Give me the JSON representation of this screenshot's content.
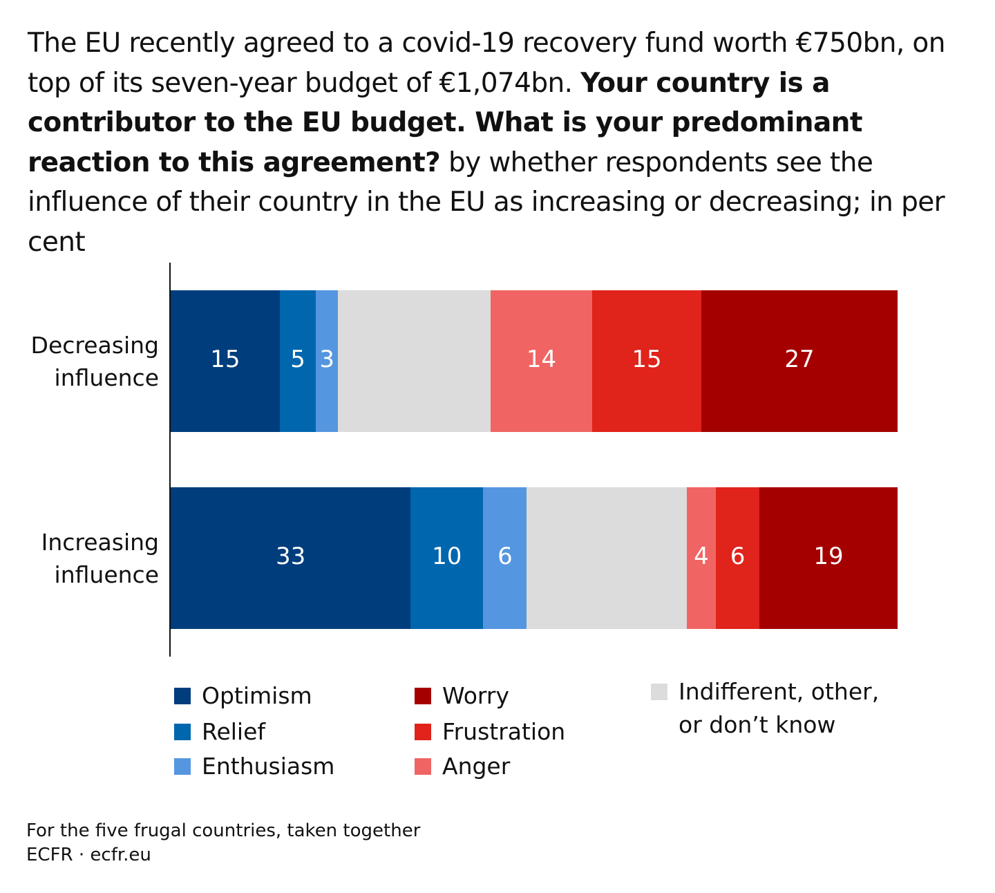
{
  "title_parts": [
    {
      "text": "The EU recently agreed to a covid-19 recovery fund worth €750bn, on top of its seven-year budget of €1,074bn. ",
      "bold": false
    },
    {
      "text": "Your country is a contributor to the EU budget. What is your predominant reaction to this agreement?",
      "bold": true
    },
    {
      "text": " by whether respondents see the influence of their country in the EU as increasing or decreasing; in per cent",
      "bold": false
    }
  ],
  "chart_data": {
    "type": "bar",
    "orientation": "horizontal",
    "stacked": true,
    "xlim": [
      0,
      100
    ],
    "categories": [
      "Decreasing influence",
      "Increasing influence"
    ],
    "series": [
      {
        "name": "Optimism",
        "color": "#003d7c",
        "values": [
          15,
          33
        ],
        "labeled": true
      },
      {
        "name": "Relief",
        "color": "#0066ae",
        "values": [
          5,
          10
        ],
        "labeled": true
      },
      {
        "name": "Enthusiasm",
        "color": "#5596e0",
        "values": [
          3,
          6
        ],
        "labeled": true
      },
      {
        "name": "Indifferent, other, or don’t know",
        "color": "#dcdcdc",
        "values": [
          21,
          22
        ],
        "labeled": false
      },
      {
        "name": "Anger",
        "color": "#f06563",
        "values": [
          14,
          4
        ],
        "labeled": true
      },
      {
        "name": "Frustration",
        "color": "#e0231b",
        "values": [
          15,
          6
        ],
        "labeled": true
      },
      {
        "name": "Worry",
        "color": "#a50000",
        "values": [
          27,
          19
        ],
        "labeled": true
      }
    ],
    "legend_order": [
      [
        "Optimism",
        "Relief",
        "Enthusiasm"
      ],
      [
        "Worry",
        "Frustration",
        "Anger"
      ],
      [
        "Indifferent, other, or don’t know"
      ]
    ],
    "legend_placement": "bottom"
  },
  "category_lines": [
    [
      "Decreasing",
      "influence"
    ],
    [
      "Increasing",
      "influence"
    ]
  ],
  "legend_indifferent_lines": [
    "Indifferent, other,",
    "or don’t know"
  ],
  "footer": {
    "note": "For the five frugal countries, taken together",
    "source": "ECFR · ecfr.eu"
  }
}
